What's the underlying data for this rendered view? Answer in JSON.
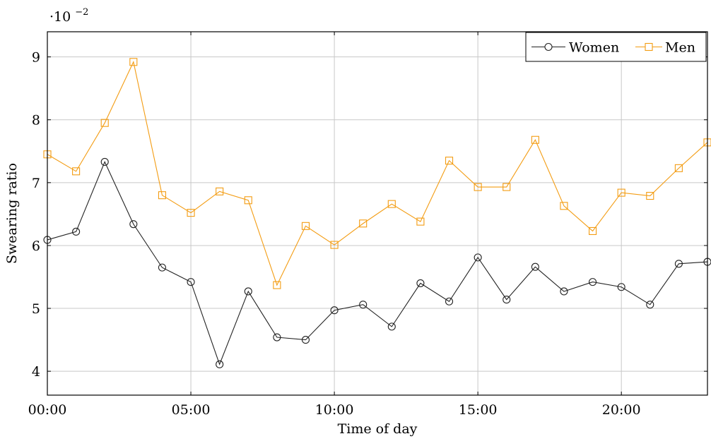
{
  "chart_data": {
    "type": "line",
    "xlabel": "Time of day",
    "ylabel": "Swearing ratio",
    "y_multiplier": {
      "base": "·10",
      "exponent": "−2"
    },
    "x": [
      0,
      1,
      2,
      3,
      4,
      5,
      6,
      7,
      8,
      9,
      10,
      11,
      12,
      13,
      14,
      15,
      16,
      17,
      18,
      19,
      20,
      21,
      22,
      23
    ],
    "x_ticks": [
      {
        "value": 0,
        "label": "00:00"
      },
      {
        "value": 5,
        "label": "05:00"
      },
      {
        "value": 10,
        "label": "10:00"
      },
      {
        "value": 15,
        "label": "15:00"
      },
      {
        "value": 20,
        "label": "20:00"
      }
    ],
    "y_ticks": [
      {
        "value": 4,
        "label": "4"
      },
      {
        "value": 5,
        "label": "5"
      },
      {
        "value": 6,
        "label": "6"
      },
      {
        "value": 7,
        "label": "7"
      },
      {
        "value": 8,
        "label": "8"
      },
      {
        "value": 9,
        "label": "9"
      }
    ],
    "xlim": [
      0,
      23
    ],
    "ylim": [
      3.62,
      9.4
    ],
    "grid": true,
    "legend_position": "top-right",
    "series": [
      {
        "name": "Women",
        "color": "#222222",
        "marker": "circle",
        "values": [
          6.09,
          6.22,
          7.33,
          6.34,
          5.65,
          5.42,
          4.11,
          5.27,
          4.54,
          4.5,
          4.97,
          5.06,
          4.71,
          5.4,
          5.11,
          5.81,
          5.14,
          5.66,
          5.27,
          5.42,
          5.34,
          5.06,
          5.71,
          5.74
        ]
      },
      {
        "name": "Men",
        "color": "#f39c12",
        "marker": "square",
        "values": [
          7.45,
          7.18,
          7.95,
          8.92,
          6.8,
          6.52,
          6.86,
          6.72,
          5.37,
          6.31,
          6.01,
          6.35,
          6.66,
          6.38,
          7.35,
          6.93,
          6.93,
          7.68,
          6.63,
          6.23,
          6.84,
          6.79,
          7.23,
          7.64
        ]
      }
    ]
  }
}
